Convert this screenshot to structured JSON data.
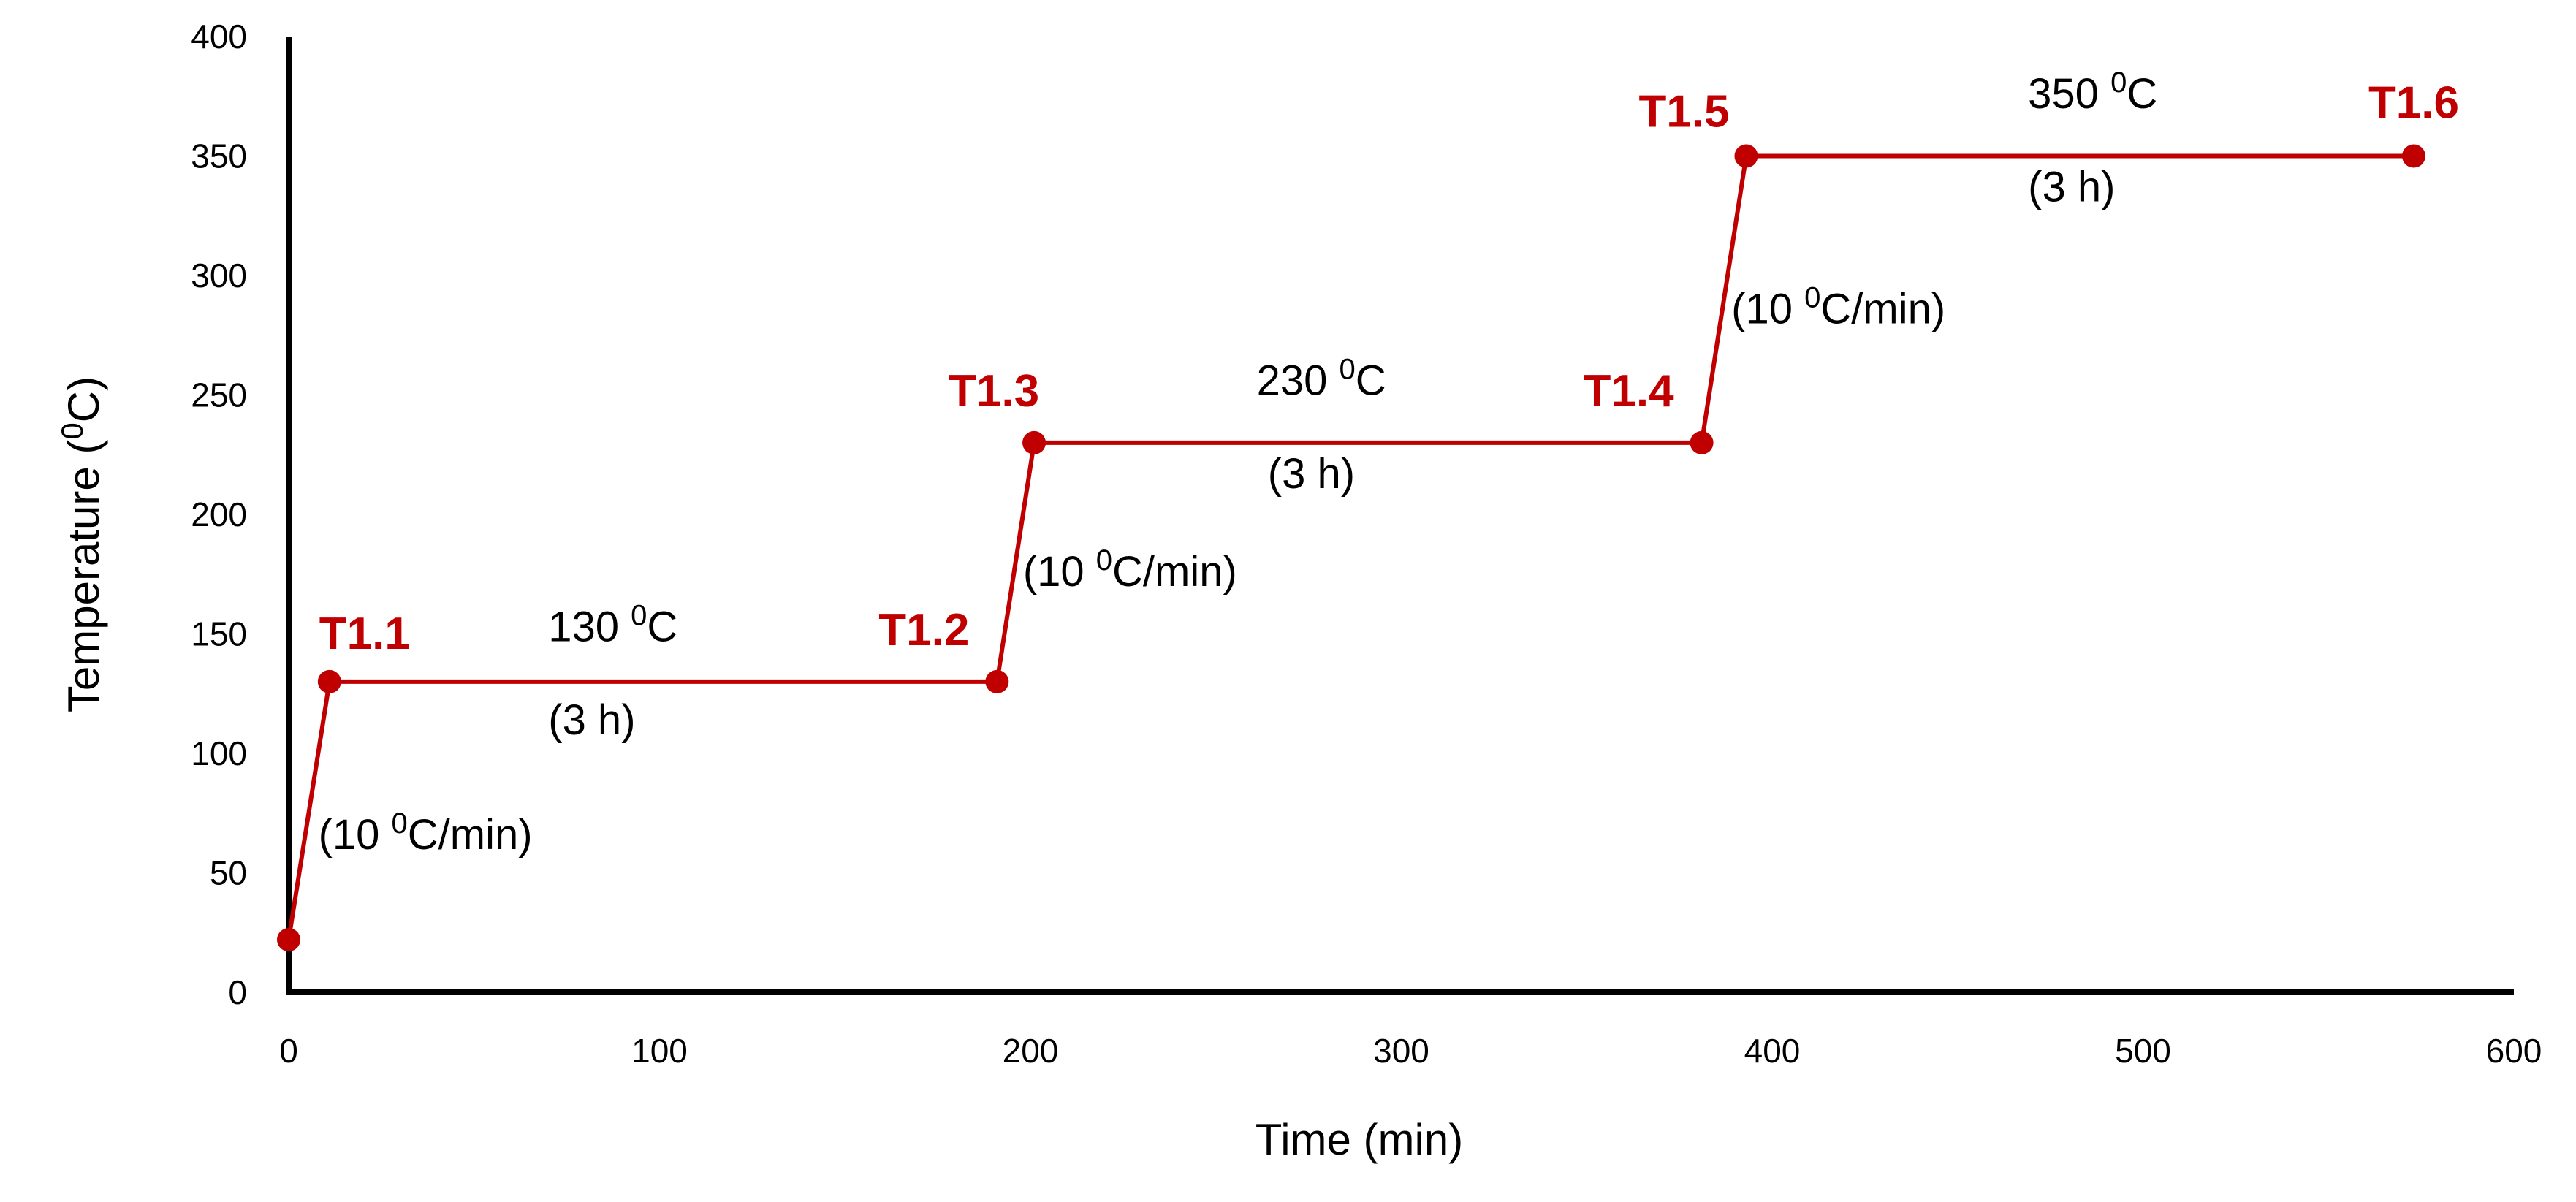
{
  "chart_data": {
    "type": "line",
    "title": "",
    "xlabel": "Time (min)",
    "ylabel_parts": [
      "Temperature (",
      "0",
      "C)"
    ],
    "xlim": [
      0,
      600
    ],
    "ylim": [
      0,
      400
    ],
    "xticks": [
      0,
      100,
      200,
      300,
      400,
      500,
      600
    ],
    "yticks": [
      0,
      50,
      100,
      150,
      200,
      250,
      300,
      350,
      400
    ],
    "xtick_labels": [
      "0",
      "100",
      "200",
      "300",
      "400",
      "500",
      "600"
    ],
    "ytick_labels": [
      "0",
      "50",
      "100",
      "150",
      "200",
      "250",
      "300",
      "350",
      "400"
    ],
    "grid": false,
    "series": [
      {
        "name": "Heating profile",
        "color": "#c00000",
        "points": [
          {
            "x": 0,
            "y": 22,
            "label": ""
          },
          {
            "x": 11,
            "y": 130,
            "label": "T1.1"
          },
          {
            "x": 191,
            "y": 130,
            "label": "T1.2"
          },
          {
            "x": 201,
            "y": 230,
            "label": "T1.3"
          },
          {
            "x": 381,
            "y": 230,
            "label": "T1.4"
          },
          {
            "x": 393,
            "y": 350,
            "label": "T1.5"
          },
          {
            "x": 573,
            "y": 350,
            "label": "T1.6"
          }
        ]
      }
    ],
    "annotations": [
      {
        "text_parts": [
          "(10 ",
          "0",
          "C/min)"
        ],
        "x": 8,
        "y": 60
      },
      {
        "text_parts": [
          "130 ",
          "0",
          "C"
        ],
        "x": 70,
        "y": 147
      },
      {
        "text_parts": [
          "(3 h)"
        ],
        "x": 70,
        "y": 108
      },
      {
        "text_parts": [
          "(10 ",
          "0",
          "C/min)"
        ],
        "x": 198,
        "y": 170
      },
      {
        "text_parts": [
          "230 ",
          "0",
          "C"
        ],
        "x": 261,
        "y": 250
      },
      {
        "text_parts": [
          "(3 h)"
        ],
        "x": 264,
        "y": 211
      },
      {
        "text_parts": [
          "(10 ",
          "0",
          "C/min)"
        ],
        "x": 389,
        "y": 280
      },
      {
        "text_parts": [
          "350 ",
          "0",
          "C"
        ],
        "x": 469,
        "y": 370
      },
      {
        "text_parts": [
          "(3 h)"
        ],
        "x": 469,
        "y": 331
      }
    ]
  }
}
